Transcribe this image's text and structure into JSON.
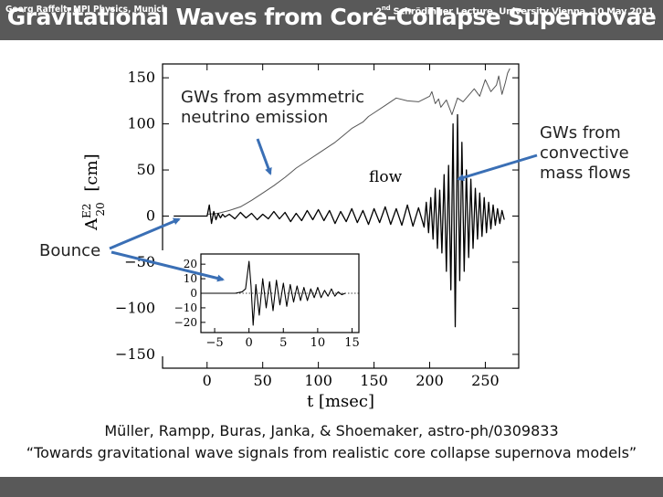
{
  "slide": {
    "title": "Gravitational Waves from Core-Collapse Supernovae",
    "footer_left": "Georg Raffelt, MPI Physics, Munich",
    "footer_right_ordinal": "2",
    "footer_right_suffix": "nd",
    "footer_right_rest": " Schrödinger Lecture, University Vienna, 10 May 2011"
  },
  "annotations": {
    "asymmetric_line1": "GWs from asymmetric",
    "asymmetric_line2": "neutrino emission",
    "convective_line1": "GWs from",
    "convective_line2": "convective",
    "convective_line3": "mass flows",
    "bounce": "Bounce"
  },
  "citation": {
    "line1": "Müller, Rampp, Buras, Janka, & Shoemaker, astro-ph/0309833",
    "line2": "“Towards gravitational wave signals from realistic core collapse supernova models”"
  },
  "colors": {
    "bar": "#595959",
    "arrow": "#3a6fb5",
    "trace": "#000000",
    "neutrino_trace": "#555555"
  },
  "chart_data": [
    {
      "type": "line",
      "title": "",
      "xlabel": "t [msec]",
      "ylabel": "A20E2 [cm]",
      "ylabel_main": "A",
      "ylabel_sup": "E2",
      "ylabel_sub": "20",
      "ylabel_unit": "[cm]",
      "xlim": [
        -40,
        280
      ],
      "ylim": [
        -165,
        165
      ],
      "xticks": [
        0,
        50,
        100,
        150,
        200,
        250
      ],
      "yticks": [
        150,
        100,
        50,
        0,
        -50,
        -100,
        -150
      ],
      "ytick_labels": [
        "150",
        "100",
        "50",
        "0",
        "−50",
        "−100",
        "−150"
      ],
      "inline_label": "flow",
      "series": [
        {
          "name": "neutrino",
          "x": [
            0,
            10,
            20,
            30,
            40,
            50,
            60,
            70,
            75,
            80,
            90,
            100,
            110,
            115,
            120,
            125,
            130,
            140,
            145,
            150,
            160,
            170,
            180,
            190,
            200,
            202,
            205,
            208,
            210,
            215,
            220,
            225,
            230,
            240,
            245,
            250,
            255,
            260,
            262,
            265,
            268,
            270,
            272
          ],
          "y": [
            2,
            3,
            6,
            10,
            17,
            25,
            33,
            42,
            47,
            52,
            60,
            68,
            76,
            80,
            85,
            90,
            95,
            102,
            108,
            112,
            120,
            128,
            125,
            124,
            130,
            135,
            122,
            127,
            118,
            126,
            110,
            128,
            124,
            138,
            130,
            148,
            135,
            142,
            152,
            132,
            145,
            155,
            160
          ]
        },
        {
          "name": "convective",
          "x": [
            -30,
            -5,
            0,
            2,
            4,
            6,
            8,
            10,
            12,
            14,
            16,
            20,
            25,
            30,
            35,
            40,
            45,
            50,
            55,
            60,
            65,
            70,
            75,
            80,
            85,
            90,
            95,
            100,
            105,
            110,
            115,
            120,
            125,
            130,
            135,
            140,
            145,
            150,
            155,
            160,
            165,
            170,
            175,
            180,
            185,
            190,
            195,
            197,
            199,
            201,
            203,
            205,
            207,
            209,
            211,
            213,
            215,
            217,
            219,
            221,
            223,
            225,
            227,
            229,
            231,
            233,
            235,
            237,
            239,
            241,
            243,
            245,
            247,
            249,
            251,
            253,
            255,
            257,
            259,
            261,
            263,
            265,
            267
          ],
          "y": [
            0,
            0,
            0,
            12,
            -8,
            5,
            -4,
            3,
            -2,
            2,
            -1,
            2,
            -3,
            4,
            -2,
            3,
            -4,
            2,
            -3,
            5,
            -3,
            4,
            -6,
            3,
            -5,
            6,
            -4,
            7,
            -5,
            6,
            -8,
            5,
            -6,
            8,
            -7,
            6,
            -9,
            8,
            -7,
            10,
            -9,
            8,
            -10,
            12,
            -11,
            9,
            -12,
            15,
            -18,
            20,
            -25,
            30,
            -35,
            28,
            -40,
            45,
            -60,
            55,
            -80,
            100,
            -120,
            110,
            -70,
            80,
            -60,
            50,
            -45,
            40,
            -35,
            30,
            -25,
            25,
            -22,
            20,
            -18,
            15,
            -14,
            12,
            -10,
            8,
            -8,
            6,
            -4
          ]
        }
      ]
    },
    {
      "type": "line",
      "title": "",
      "xlabel": "",
      "ylabel": "",
      "xlim": [
        -7,
        16
      ],
      "ylim": [
        -27,
        27
      ],
      "xticks": [
        -5,
        0,
        5,
        10,
        15
      ],
      "xtick_labels": [
        "−5",
        "0",
        "5",
        "10",
        "15"
      ],
      "yticks": [
        20,
        10,
        0,
        -10,
        -20
      ],
      "ytick_labels": [
        "20",
        "10",
        "0",
        "−10",
        "−20"
      ],
      "dotted_zero_line": true,
      "series": [
        {
          "name": "bounce_zoom",
          "x": [
            -7,
            -5,
            -3,
            -2,
            -1,
            -0.5,
            0,
            0.3,
            0.6,
            1,
            1.5,
            2,
            2.5,
            3,
            3.5,
            4,
            4.5,
            5,
            5.5,
            6,
            6.5,
            7,
            7.5,
            8,
            8.5,
            9,
            9.5,
            10,
            10.5,
            11,
            11.5,
            12,
            12.5,
            13,
            13.5,
            14
          ],
          "y": [
            0,
            0,
            0,
            0,
            1,
            3,
            22,
            5,
            -22,
            6,
            -15,
            10,
            -10,
            8,
            -12,
            9,
            -8,
            7,
            -9,
            6,
            -6,
            5,
            -5,
            4,
            -5,
            3,
            -3,
            4,
            -3,
            2,
            -2,
            3,
            -2,
            1,
            -1,
            0
          ]
        }
      ]
    }
  ]
}
